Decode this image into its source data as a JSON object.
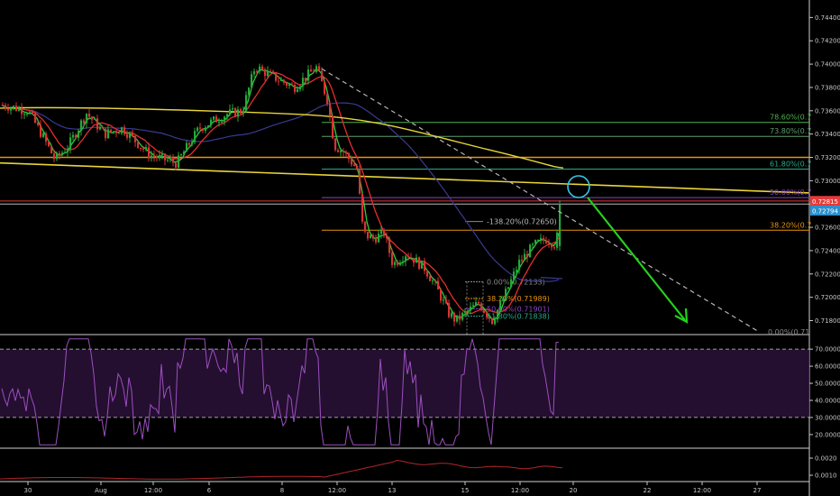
{
  "chart_data": {
    "type": "candlestick",
    "price_axis": {
      "range": [
        0.7168,
        0.7455
      ],
      "ticks": [
        "0.74400",
        "0.74200",
        "0.74000",
        "0.73800",
        "0.73600",
        "0.73400",
        "0.73200",
        "0.73000",
        "0.72800",
        "0.72600",
        "0.72400",
        "0.72200",
        "0.72000",
        "0.71800"
      ]
    },
    "time_axis": {
      "labels": [
        "30",
        "Aug",
        "12:00",
        "6",
        "8",
        "12:00",
        "13",
        "15",
        "12:00",
        "20",
        "22",
        "12:00",
        "27"
      ]
    },
    "price_tags": [
      {
        "text": "0.72815",
        "color": "#e23b3b",
        "value": 0.72815
      },
      {
        "text": "0.72794",
        "color": "#2d8fcb",
        "value": 0.72794
      }
    ],
    "horizontal_lines": [
      {
        "value": 0.732,
        "color": "#e8930c"
      },
      {
        "value": 0.72826,
        "color": "#e23b3b"
      },
      {
        "value": 0.728,
        "color": "#b9b9b9"
      }
    ],
    "fibonacci_main": [
      {
        "label": "78.60%(0.7",
        "value": 0.735,
        "color": "#4cb24c"
      },
      {
        "label": "73.80%(0.7",
        "value": 0.7338,
        "color": "#5e9e6e"
      },
      {
        "label": "61.80%(0.7",
        "value": 0.731,
        "color": "#2aa98a"
      },
      {
        "label": "50.00%(0.7",
        "value": 0.72855,
        "color": "#8a45c4"
      },
      {
        "label": "38.20%(0.7",
        "value": 0.72575,
        "color": "#e8930c"
      },
      {
        "label": "0.00%(0.71",
        "value": 0.71704,
        "color": "#8a8a8a"
      }
    ],
    "fibonacci_small": [
      {
        "label": "-138.20%(0.72650)",
        "value": 0.7265,
        "color": "#8a8a8a"
      },
      {
        "label": "0.00%(0.72133)",
        "value": 0.72133,
        "color": "#8a8a8a"
      },
      {
        "label": "38.20%(0.71989)",
        "value": 0.71989,
        "color": "#e8930c"
      },
      {
        "label": "50.00%(0.71901)",
        "value": 0.71901,
        "color": "#8a45c4"
      },
      {
        "label": "61.80%(0.71838)",
        "value": 0.71838,
        "color": "#2aa98a"
      }
    ],
    "rsi": {
      "range": [
        12,
        78
      ],
      "ticks": [
        "70.0000",
        "60.0000",
        "50.0000",
        "40.0000",
        "30.0000",
        "20.0000"
      ],
      "levels": [
        70,
        30
      ],
      "color": "#9c4fbf"
    },
    "lower_indicator": {
      "ticks": [
        "0.0020",
        "0.0010"
      ],
      "color": "#b2262b"
    },
    "colors": {
      "background": "#000000",
      "bull": "#26a83a",
      "bear": "#d83333",
      "ma_fast": "#2ecc40",
      "ma_mid": "#e52e2e",
      "ma_slow": "#3a3a92",
      "ma_long": "#e8d53a",
      "trendline": "#e8d53a",
      "projection": "#25d01c",
      "circle": "#35c6e8"
    }
  }
}
